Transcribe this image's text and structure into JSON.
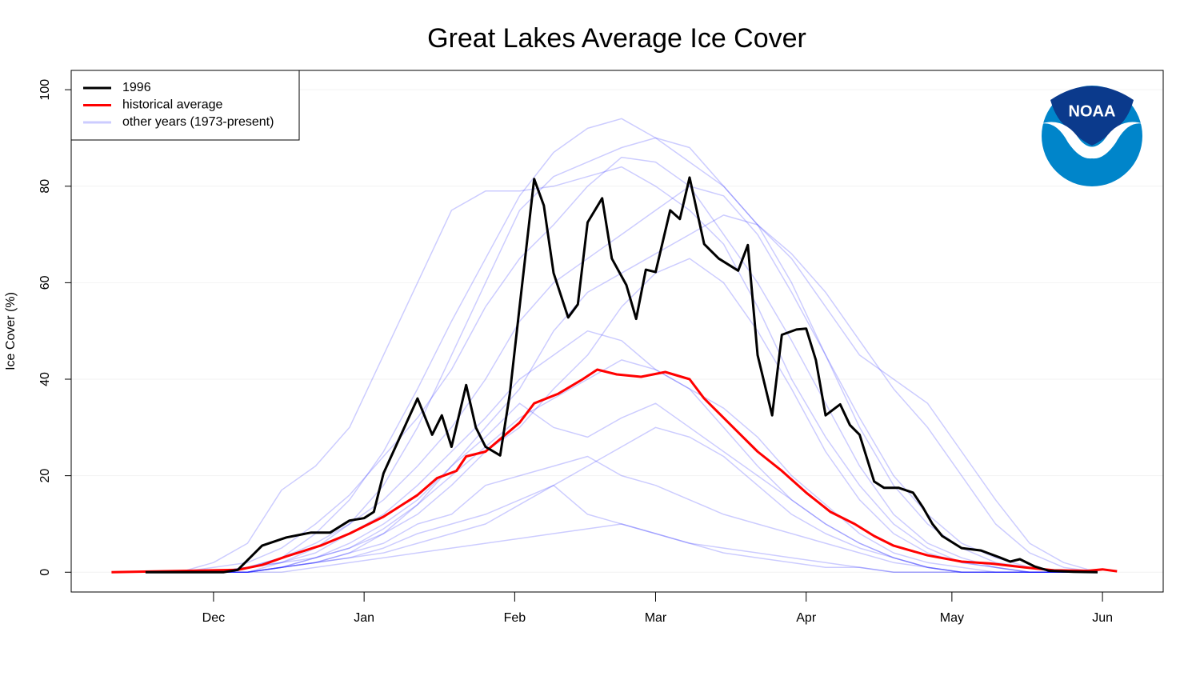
{
  "chart_data": {
    "type": "line",
    "title": "Great Lakes Average Ice Cover",
    "ylabel": "Ice Cover (%)",
    "xlim": [
      -29.3,
      195.5
    ],
    "ylim": [
      -4.1,
      104
    ],
    "yticks": [
      0,
      20,
      40,
      60,
      80,
      100
    ],
    "xticks": [
      {
        "value": 0,
        "label": "Dec"
      },
      {
        "value": 31,
        "label": "Jan"
      },
      {
        "value": 62,
        "label": "Feb"
      },
      {
        "value": 91,
        "label": "Mar"
      },
      {
        "value": 122,
        "label": "Apr"
      },
      {
        "value": 152,
        "label": "May"
      },
      {
        "value": 183,
        "label": "Jun"
      }
    ],
    "grid": true,
    "legend": "top-left",
    "series": [
      {
        "name": "1996",
        "color": "#000000",
        "x": [
          -14,
          2,
          5,
          10,
          12,
          15,
          20,
          24,
          28,
          31,
          33,
          35,
          42,
          45,
          47,
          49,
          52,
          54,
          56,
          59,
          61,
          63,
          66,
          68,
          70,
          73,
          75,
          77,
          80,
          82,
          85,
          87,
          89,
          91,
          94,
          96,
          98,
          101,
          104,
          108,
          110,
          112,
          115,
          117,
          120,
          122,
          124,
          126,
          129,
          131,
          133,
          136,
          138,
          141,
          144,
          146,
          148,
          150,
          154,
          158,
          162,
          164,
          166,
          169,
          172,
          177,
          182
        ],
        "values": [
          0,
          0,
          0.5,
          5.5,
          6.2,
          7.2,
          8.2,
          8.2,
          10.7,
          11.2,
          12.5,
          20.5,
          36,
          28.5,
          32.5,
          26,
          38.8,
          30,
          26,
          24.2,
          37,
          55,
          81.5,
          76,
          62,
          52.8,
          55.5,
          72.5,
          77.5,
          65,
          59.5,
          52.5,
          62.7,
          62.2,
          75,
          73.2,
          81.8,
          68,
          65,
          62.5,
          67.8,
          45,
          32.5,
          49.2,
          50.3,
          50.5,
          44,
          32.5,
          34.8,
          30.5,
          28.5,
          18.8,
          17.5,
          17.5,
          16.5,
          13.5,
          10,
          7.5,
          5,
          4.5,
          3,
          2.2,
          2.7,
          1.2,
          0.3,
          0.1,
          0
        ]
      },
      {
        "name": "historical average",
        "color": "#ff0000",
        "x": [
          -21,
          5,
          10,
          15,
          22,
          28,
          35,
          42,
          46,
          50,
          52,
          56,
          63,
          66,
          71,
          76,
          79,
          83,
          88,
          93,
          98,
          101,
          104,
          109,
          112,
          117,
          122,
          127,
          132,
          136,
          140,
          147,
          154,
          160,
          167,
          173,
          180,
          183,
          186
        ],
        "values": [
          0,
          0.5,
          1.5,
          3.3,
          5.5,
          8,
          11.5,
          16,
          19.5,
          21,
          24,
          25,
          31,
          35,
          37,
          40,
          42,
          41,
          40.5,
          41.5,
          40,
          36,
          33,
          28,
          25,
          21,
          16.5,
          12.5,
          10,
          7.5,
          5.5,
          3.5,
          2.2,
          1.8,
          1,
          0.4,
          0.3,
          0.6,
          0.2
        ]
      },
      {
        "name": "other years (1973-present)",
        "color": "#0000ff",
        "opacity": 0.2,
        "x": [
          -7,
          0,
          7,
          14,
          21,
          28,
          35,
          42,
          49,
          56,
          63,
          70,
          77,
          84,
          91,
          98,
          105,
          112,
          119,
          126,
          133,
          140,
          147,
          154,
          161,
          168,
          175,
          182
        ],
        "lines": [
          [
            0,
            0,
            1,
            3,
            8,
            15,
            25,
            38,
            52,
            65,
            78,
            87,
            92,
            94,
            90,
            85,
            80,
            72,
            60,
            45,
            30,
            18,
            10,
            5,
            2,
            1,
            0,
            0
          ],
          [
            0,
            0,
            0,
            2,
            5,
            10,
            18,
            30,
            45,
            60,
            75,
            82,
            85,
            88,
            90,
            88,
            80,
            72,
            65,
            55,
            45,
            40,
            35,
            25,
            15,
            6,
            2,
            0
          ],
          [
            0,
            0,
            0,
            1,
            2,
            3,
            5,
            8,
            10,
            12,
            15,
            18,
            12,
            10,
            8,
            6,
            5,
            4,
            3,
            2,
            1,
            0,
            0,
            0,
            0,
            0,
            0,
            0
          ],
          [
            0,
            0,
            1,
            2,
            4,
            8,
            12,
            18,
            25,
            32,
            40,
            45,
            50,
            48,
            42,
            38,
            30,
            22,
            15,
            10,
            6,
            3,
            1,
            0,
            0,
            0,
            0,
            0
          ],
          [
            0,
            2,
            6,
            17,
            22,
            30,
            45,
            60,
            75,
            79,
            79,
            80,
            82,
            84,
            80,
            75,
            68,
            55,
            40,
            28,
            18,
            10,
            5,
            2,
            1,
            0,
            0,
            0
          ],
          [
            0,
            0,
            0,
            1,
            3,
            6,
            10,
            15,
            22,
            28,
            35,
            30,
            28,
            32,
            35,
            30,
            25,
            20,
            15,
            10,
            6,
            3,
            1,
            0,
            0,
            0,
            0,
            0
          ],
          [
            0,
            0,
            1,
            2,
            3,
            5,
            8,
            12,
            18,
            25,
            30,
            38,
            45,
            55,
            62,
            65,
            60,
            50,
            38,
            25,
            15,
            8,
            4,
            2,
            1,
            0,
            0,
            0
          ],
          [
            0,
            0,
            0,
            1,
            2,
            4,
            6,
            10,
            12,
            18,
            20,
            22,
            24,
            20,
            18,
            15,
            12,
            10,
            8,
            6,
            4,
            2,
            1,
            0,
            0,
            0,
            0,
            0
          ],
          [
            0,
            0,
            1,
            3,
            6,
            10,
            15,
            22,
            30,
            40,
            52,
            60,
            65,
            70,
            75,
            80,
            78,
            70,
            58,
            45,
            32,
            20,
            12,
            6,
            3,
            1,
            0,
            0
          ],
          [
            0,
            0,
            0,
            1,
            2,
            3,
            4,
            6,
            8,
            10,
            14,
            18,
            22,
            26,
            30,
            28,
            24,
            18,
            12,
            8,
            5,
            3,
            1,
            0,
            0,
            0,
            0,
            0
          ],
          [
            0,
            1,
            2,
            5,
            10,
            16,
            24,
            32,
            42,
            55,
            65,
            72,
            80,
            86,
            85,
            80,
            70,
            60,
            48,
            35,
            22,
            12,
            6,
            3,
            1,
            0,
            0,
            0
          ],
          [
            0,
            0,
            0,
            1,
            2,
            4,
            8,
            14,
            20,
            26,
            32,
            36,
            40,
            44,
            42,
            38,
            34,
            28,
            20,
            14,
            8,
            4,
            2,
            1,
            0,
            0,
            0,
            0
          ],
          [
            0,
            0,
            0,
            0,
            1,
            2,
            3,
            4,
            5,
            6,
            7,
            8,
            9,
            10,
            8,
            6,
            4,
            3,
            2,
            1,
            1,
            0,
            0,
            0,
            0,
            0,
            0,
            0
          ],
          [
            0,
            0,
            0,
            1,
            3,
            5,
            9,
            14,
            22,
            30,
            38,
            50,
            58,
            62,
            66,
            70,
            74,
            72,
            66,
            58,
            48,
            38,
            30,
            20,
            10,
            4,
            1,
            0
          ]
        ]
      }
    ]
  }
}
